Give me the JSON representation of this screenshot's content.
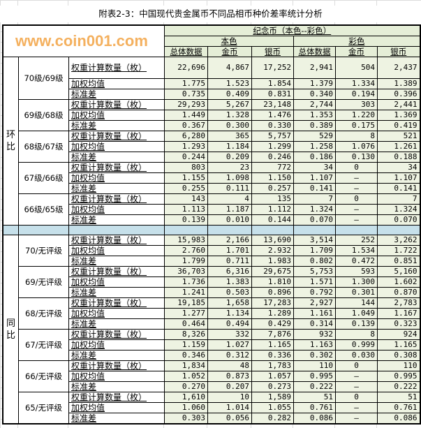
{
  "title": "附表2-3：中国现代贵金属币不同品相币种价差率统计分析",
  "header": {
    "top": "纪念币（本色--彩色）",
    "groups": [
      "本色",
      "彩色"
    ],
    "columns": [
      "总体数据",
      "金币",
      "银币",
      "总体数据",
      "金币",
      "银币"
    ]
  },
  "metrics": [
    "权重计算数量（枚）",
    "加权均值",
    "标准差"
  ],
  "sections": [
    {
      "label": "环比",
      "groups": [
        {
          "label": "70级/69级",
          "rows": [
            [
              "22,696",
              "4,867",
              "17,252",
              "2,941",
              "504",
              "2,437"
            ],
            [
              "1.775",
              "1.523",
              "1.854",
              "1.379",
              "1.334",
              "1.389"
            ],
            [
              "0.735",
              "0.409",
              "0.831",
              "0.340",
              "0.194",
              "0.396"
            ]
          ]
        },
        {
          "label": "69级/68级",
          "rows": [
            [
              "29,293",
              "5,267",
              "23,148",
              "2,744",
              "303",
              "2,441"
            ],
            [
              "1.449",
              "1.328",
              "1.476",
              "1.353",
              "1.220",
              "1.369"
            ],
            [
              "0.367",
              "0.300",
              "0.330",
              "0.389",
              "0.175",
              "0.419"
            ]
          ]
        },
        {
          "label": "68级/67级",
          "rows": [
            [
              "6,280",
              "365",
              "5,757",
              "529",
              "8",
              "521"
            ],
            [
              "1.293",
              "1.184",
              "1.299",
              "1.258",
              "1.076",
              "1.261"
            ],
            [
              "0.244",
              "0.209",
              "0.246",
              "0.186",
              "0.130",
              "0.188"
            ]
          ]
        },
        {
          "label": "67级/66级",
          "rows": [
            [
              "803",
              "23",
              "772",
              "34",
              "0",
              "34"
            ],
            [
              "1.155",
              "1.098",
              "1.150",
              "1.107",
              "—",
              "1.107"
            ],
            [
              "0.255",
              "0.111",
              "0.257",
              "0.141",
              "—",
              "0.141"
            ]
          ]
        },
        {
          "label": "66级/65级",
          "rows": [
            [
              "143",
              "4",
              "135",
              "7",
              "0",
              "7"
            ],
            [
              "1.113",
              "1.187",
              "1.112",
              "1.324",
              "—",
              "1.324"
            ],
            [
              "0.139",
              "0.010",
              "0.144",
              "0.070",
              "—",
              "0.070"
            ]
          ]
        }
      ]
    },
    {
      "label": "同比",
      "groups": [
        {
          "label": "70/无评级",
          "rows": [
            [
              "15,983",
              "2,166",
              "13,690",
              "3,514",
              "252",
              "3,262"
            ],
            [
              "2.760",
              "1.701",
              "2.932",
              "1.709",
              "1.534",
              "1.722"
            ],
            [
              "1.799",
              "0.711",
              "1.983",
              "0.802",
              "0.472",
              "0.851"
            ]
          ]
        },
        {
          "label": "69/无评级",
          "rows": [
            [
              "36,703",
              "6,316",
              "29,675",
              "5,753",
              "593",
              "5,160"
            ],
            [
              "1.736",
              "1.383",
              "1.810",
              "1.571",
              "1.300",
              "1.602"
            ],
            [
              "1.241",
              "0.503",
              "0.896",
              "0.792",
              "0.301",
              "0.870"
            ]
          ]
        },
        {
          "label": "68/无评级",
          "rows": [
            [
              "19,185",
              "1,658",
              "17,283",
              "2,927",
              "144",
              "2,783"
            ],
            [
              "1.277",
              "1.134",
              "1.289",
              "1.161",
              "1.049",
              "1.167"
            ],
            [
              "0.464",
              "0.494",
              "0.429",
              "0.314",
              "0.139",
              "0.323"
            ]
          ]
        },
        {
          "label": "67/无评级",
          "rows": [
            [
              "8,326",
              "332",
              "7,876",
              "932",
              "8",
              "924"
            ],
            [
              "1.159",
              "1.027",
              "1.165",
              "1.163",
              "0.999",
              "1.165"
            ],
            [
              "0.346",
              "0.312",
              "0.336",
              "0.302",
              "0.030",
              "0.308"
            ]
          ]
        },
        {
          "label": "66/无评级",
          "rows": [
            [
              "1,834",
              "48",
              "1,783",
              "110",
              "0",
              "110"
            ],
            [
              "1.052",
              "0.873",
              "1.057",
              "0.995",
              "—",
              "0.995"
            ],
            [
              "0.270",
              "0.207",
              "0.273",
              "0.222",
              "—",
              "0.222"
            ]
          ]
        },
        {
          "label": "65/无评级",
          "rows": [
            [
              "1,610",
              "10",
              "1,589",
              "51",
              "0",
              "51"
            ],
            [
              "1.060",
              "1.014",
              "1.055",
              "0.761",
              "—",
              "0.761"
            ],
            [
              "0.303",
              "0.056",
              "0.282",
              "0.086",
              "—",
              "0.086"
            ]
          ]
        }
      ]
    }
  ],
  "watermark": "www.coin001.com",
  "colors": {
    "data_bg": "#eef3e2",
    "header_bg": "#e5eed7",
    "separator": "#c6e0ea",
    "watermark": "#f0962a"
  }
}
